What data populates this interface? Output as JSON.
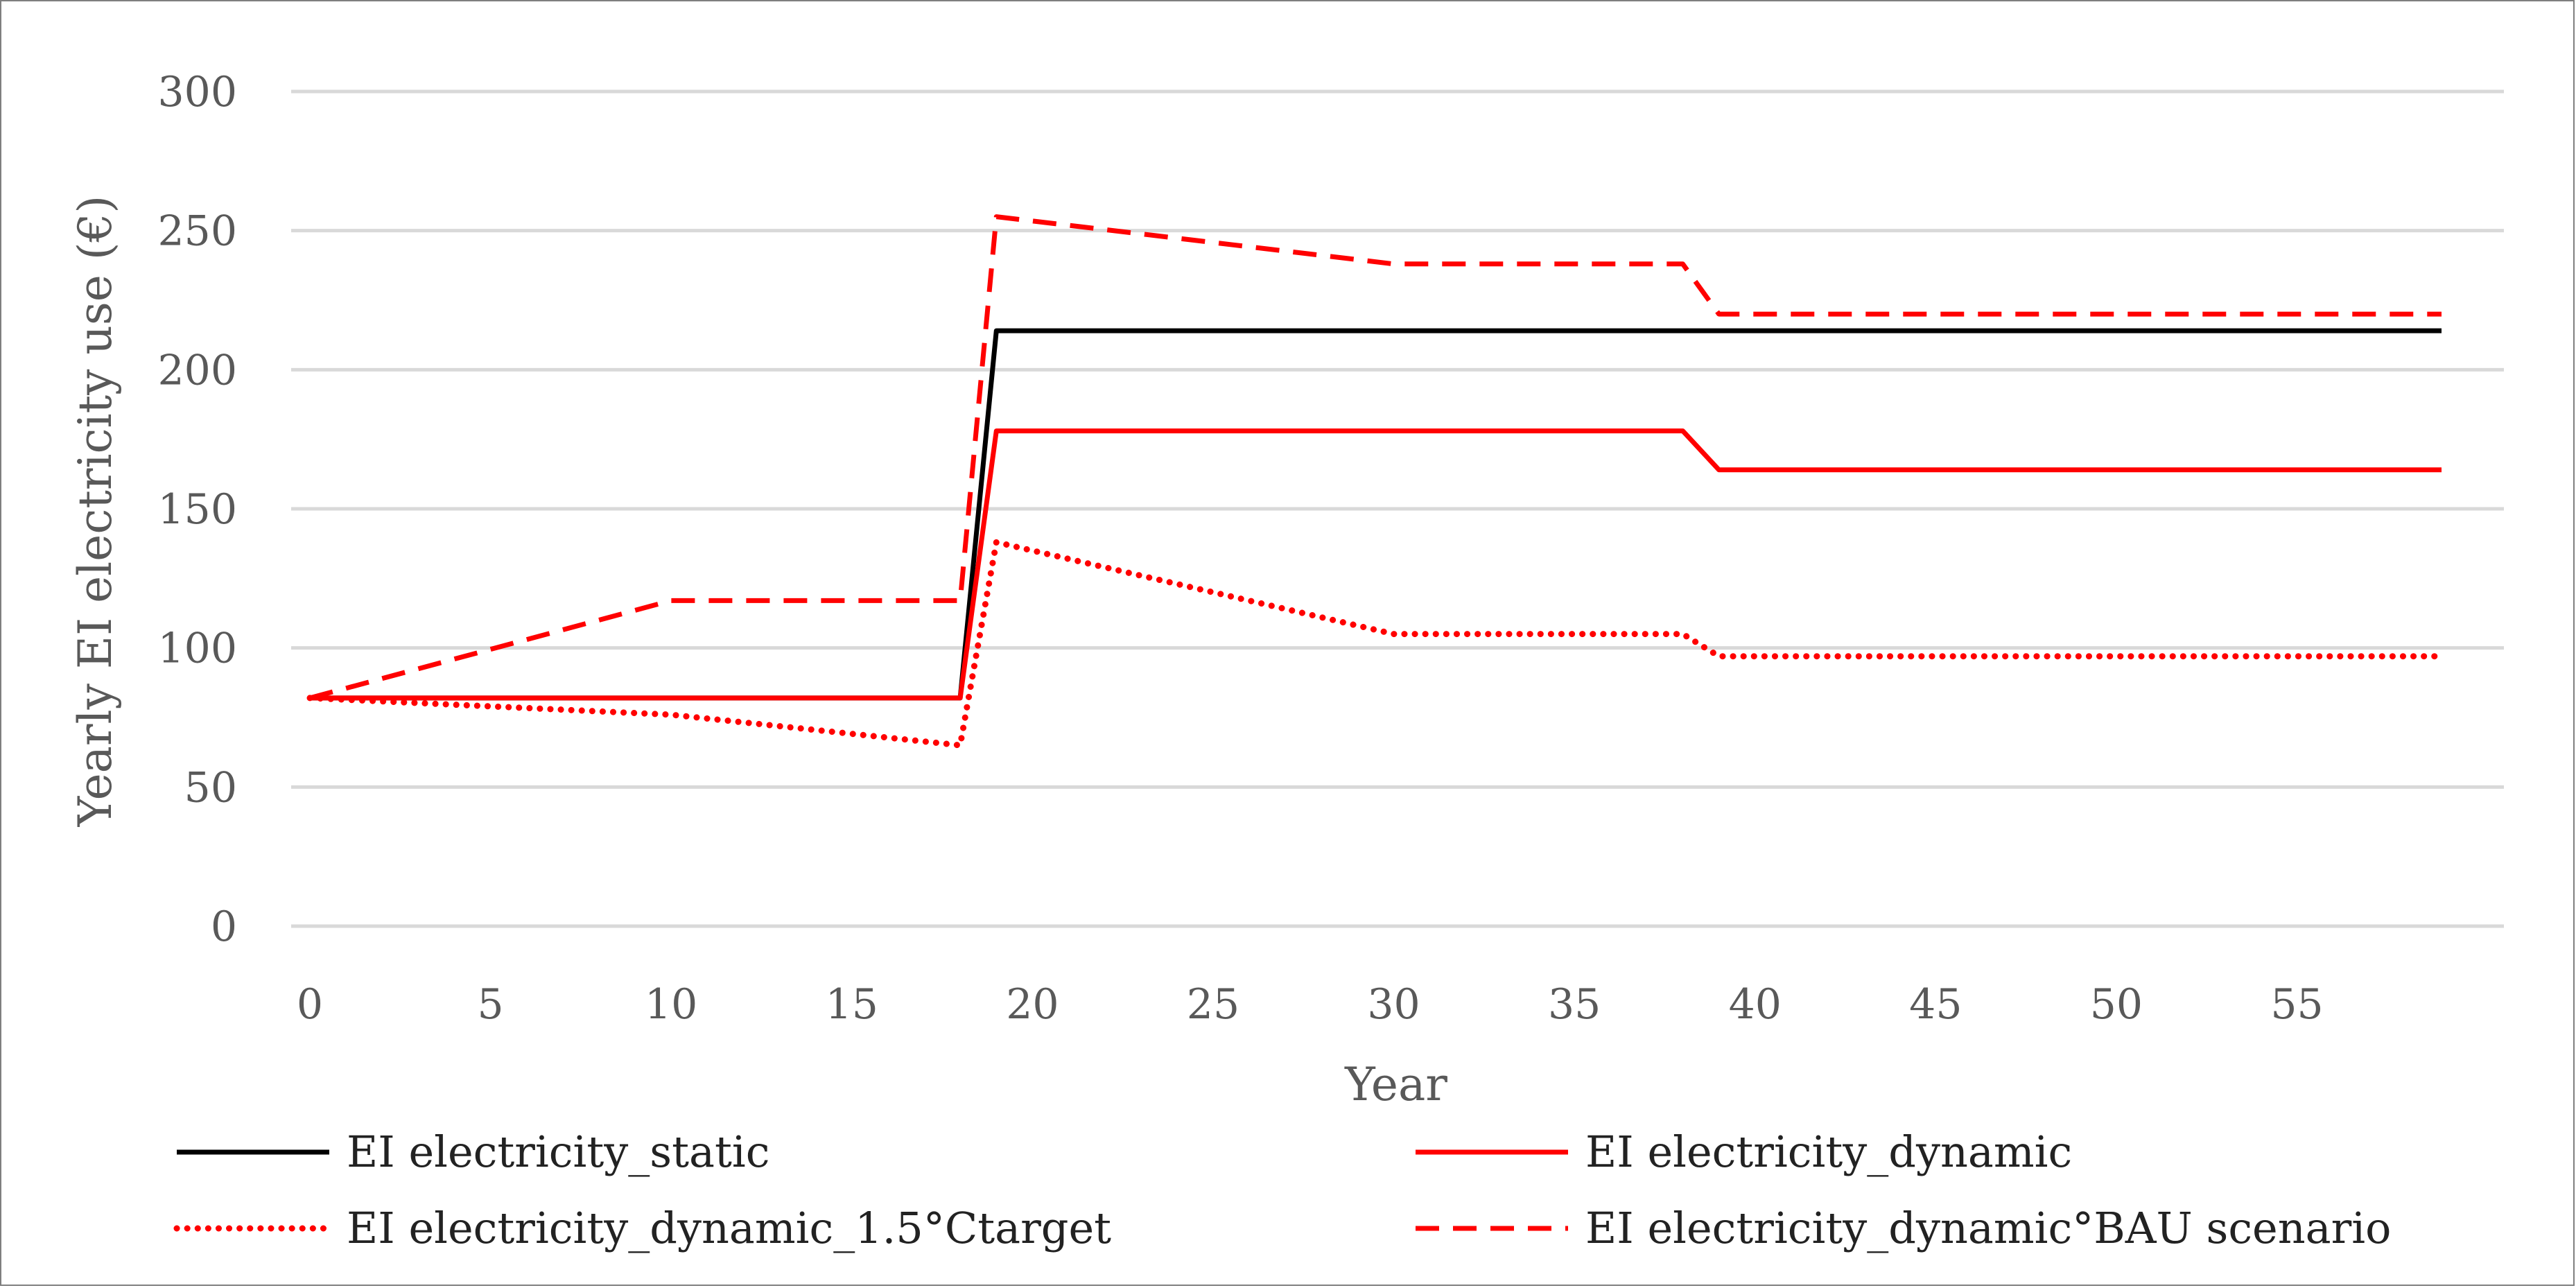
{
  "chart_data": {
    "type": "line",
    "title": "",
    "xlabel": "Year",
    "ylabel": "Yearly EI electricity use (€)",
    "xlim": [
      0,
      59
    ],
    "ylim": [
      0,
      300
    ],
    "x_ticks": [
      "0",
      "5",
      "10",
      "15",
      "20",
      "25",
      "30",
      "35",
      "40",
      "45",
      "50",
      "55"
    ],
    "y_ticks": [
      "300",
      "250",
      "200",
      "150",
      "100",
      "50",
      "0"
    ],
    "grid": true,
    "legend_position": "bottom",
    "series": [
      {
        "name": "EI electricity_static",
        "color": "#000000",
        "style": "solid",
        "points": [
          [
            0,
            82
          ],
          [
            18,
            82
          ],
          [
            19,
            214
          ],
          [
            59,
            214
          ]
        ]
      },
      {
        "name": "EI electricity_dynamic",
        "color": "#ff0000",
        "style": "solid",
        "points": [
          [
            0,
            82
          ],
          [
            18,
            82
          ],
          [
            19,
            178
          ],
          [
            38,
            178
          ],
          [
            39,
            164
          ],
          [
            59,
            164
          ]
        ]
      },
      {
        "name": "EI electricity_dynamic_1.5°Ctarget",
        "color": "#ff0000",
        "style": "dotted",
        "points": [
          [
            0,
            82
          ],
          [
            10,
            76
          ],
          [
            18,
            65
          ],
          [
            19,
            138
          ],
          [
            30,
            105
          ],
          [
            38,
            105
          ],
          [
            39,
            97
          ],
          [
            59,
            97
          ]
        ]
      },
      {
        "name": "EI electricity_dynamic°BAU scenario",
        "color": "#ff0000",
        "style": "dashed",
        "points": [
          [
            0,
            82
          ],
          [
            10,
            117
          ],
          [
            18,
            117
          ],
          [
            19,
            255
          ],
          [
            30,
            238
          ],
          [
            38,
            238
          ],
          [
            39,
            220
          ],
          [
            59,
            220
          ]
        ]
      }
    ]
  }
}
